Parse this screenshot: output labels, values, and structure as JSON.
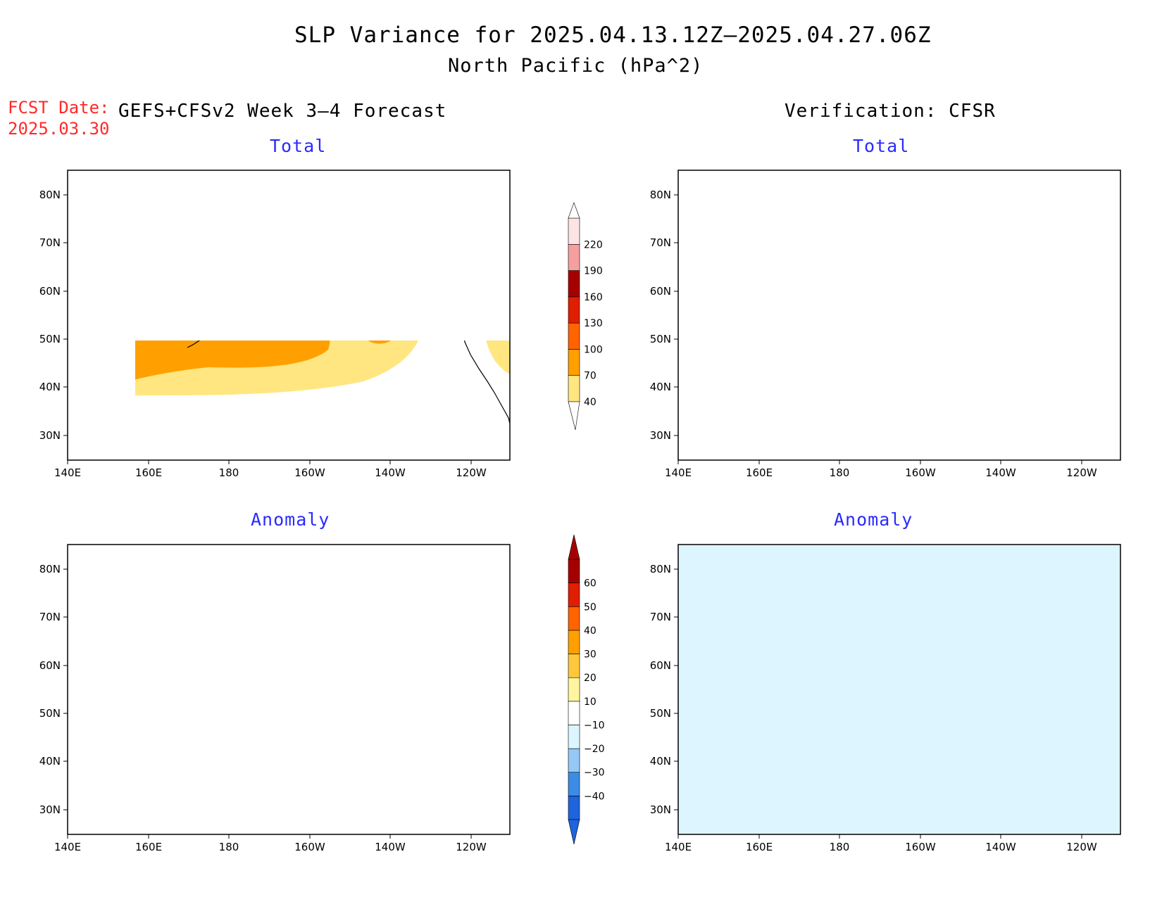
{
  "header": {
    "title": "SLP Variance for 2025.04.13.12Z–2025.04.27.06Z",
    "subtitle": "North Pacific (hPa^2)"
  },
  "fcst": {
    "label": "FCST Date:",
    "date": "2025.03.30"
  },
  "columns": {
    "left": "GEFS+CFSv2 Week 3–4 Forecast",
    "right": "Verification: CFSR"
  },
  "panels": [
    {
      "id": "forecast-total",
      "label": "Total"
    },
    {
      "id": "verification-total",
      "label": "Total"
    },
    {
      "id": "forecast-anomaly",
      "label": "Anomaly"
    },
    {
      "id": "verification-anomaly",
      "label": "Anomaly"
    }
  ],
  "axes": {
    "lat_labels": [
      "80N",
      "70N",
      "60N",
      "50N",
      "40N",
      "30N"
    ],
    "lon_labels": [
      "140E",
      "160E",
      "180",
      "160W",
      "140W",
      "120W"
    ]
  },
  "colorbars": {
    "total": {
      "levels": [
        "40",
        "70",
        "100",
        "130",
        "160",
        "190",
        "220"
      ],
      "colors": [
        "#ffe680",
        "#ffa000",
        "#ff6400",
        "#e01e00",
        "#a50000",
        "#f4a0a0",
        "#fde4e4"
      ]
    },
    "anomaly": {
      "levels": [
        "−40",
        "−30",
        "−20",
        "−10",
        "10",
        "20",
        "30",
        "40",
        "50",
        "60"
      ],
      "colors": [
        "#1e64dc",
        "#3c8ce6",
        "#96c8f5",
        "#dcf5ff",
        "#ffffff",
        "#fff5a0",
        "#ffc83c",
        "#ffa000",
        "#ff6400",
        "#e01e00",
        "#a50000"
      ]
    }
  },
  "palette": {
    "yellow": "#ffe680",
    "orange": "#ffa000",
    "dark_orange": "#ff6400",
    "red": "#e01e00",
    "dark_red": "#a50000",
    "light_cyan": "#dcf5ff",
    "light_blue": "#96c8f5",
    "mid_blue": "#3c8ce6",
    "dark_blue": "#1e64dc",
    "coast": "#000000"
  }
}
